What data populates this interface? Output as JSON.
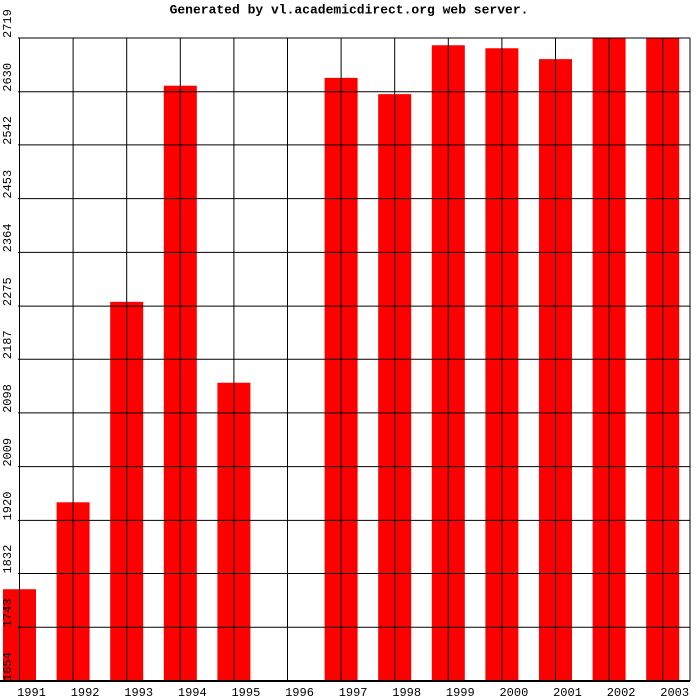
{
  "chart_data": {
    "type": "bar",
    "title": "Generated by vl.academicdirect.org web server.",
    "categories": [
      "1991",
      "1992",
      "1993",
      "1994",
      "1995",
      "1996",
      "1997",
      "1998",
      "1999",
      "2000",
      "2001",
      "2002",
      "2003"
    ],
    "values": [
      1806,
      1950,
      2282,
      2640,
      2148,
      null,
      2653,
      2626,
      2707,
      2702,
      2684,
      2719,
      2719
    ],
    "color": "#ff0000",
    "ylim": [
      1654,
      2719
    ],
    "yticks": [
      1654,
      1743,
      1832,
      1920,
      2009,
      2098,
      2187,
      2275,
      2364,
      2453,
      2542,
      2630,
      2719
    ],
    "grid": true
  }
}
